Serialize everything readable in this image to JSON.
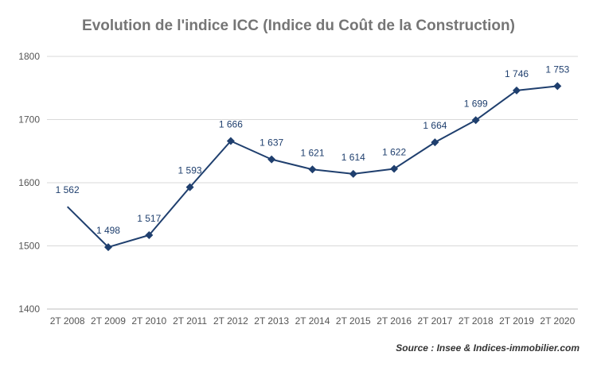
{
  "chart_data": {
    "type": "line",
    "title": "Evolution de l'indice ICC (Indice du Coût de la Construction)",
    "categories": [
      "2T 2008",
      "2T 2009",
      "2T 2010",
      "2T 2011",
      "2T 2012",
      "2T 2013",
      "2T 2014",
      "2T 2015",
      "2T 2016",
      "2T 2017",
      "2T 2018",
      "2T 2019",
      "2T 2020"
    ],
    "series": [
      {
        "values": [
          1562,
          1498,
          1517,
          1593,
          1666,
          1637,
          1621,
          1614,
          1622,
          1664,
          1699,
          1746,
          1753
        ],
        "data_labels": [
          "1 562",
          "1 498",
          "1 517",
          "1 593",
          "1 666",
          "1 637",
          "1 621",
          "1 614",
          "1 622",
          "1 664",
          "1 699",
          "1 746",
          "1 753"
        ],
        "color": "#1f3f6e",
        "marker": "diamond",
        "first_point_marker": false
      }
    ],
    "yticks": [
      1400,
      1500,
      1600,
      1700,
      1800
    ],
    "ylim": [
      1400,
      1800
    ],
    "grid": true,
    "xlabel": "",
    "ylabel": "",
    "source": "Source : Insee & Indices-immobilier.com"
  }
}
